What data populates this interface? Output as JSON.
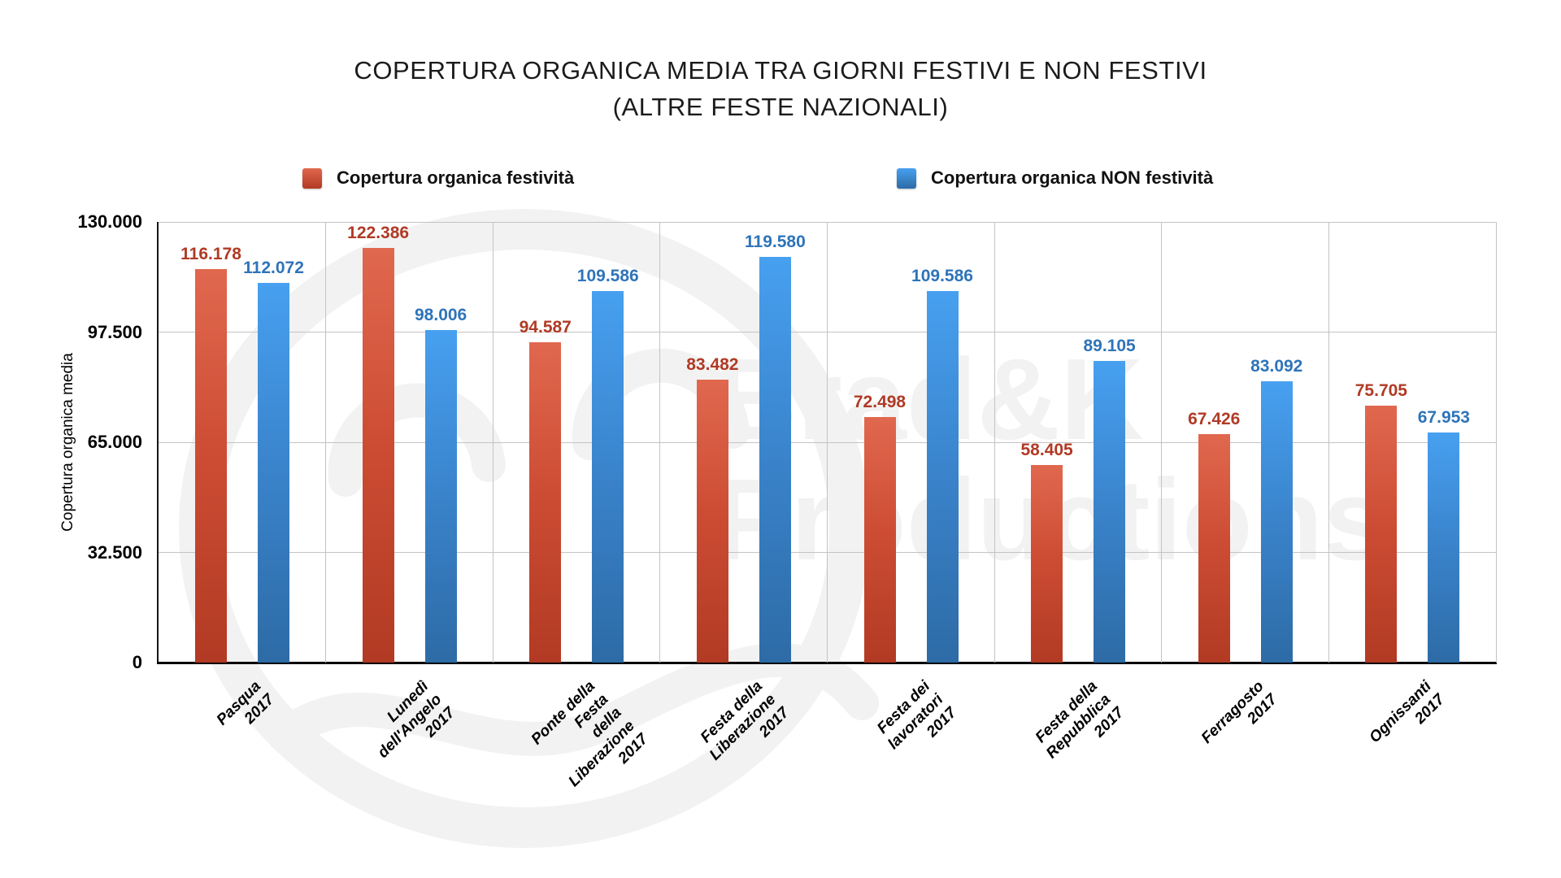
{
  "title": {
    "line1": "COPERTURA ORGANICA MEDIA TRA GIORNI FESTIVI E NON FESTIVI",
    "line2": "(ALTRE FESTE NAZIONALI)"
  },
  "legend": {
    "festivita_label": "Copertura organica festività",
    "non_festivita_label": "Copertura organica NON festività"
  },
  "watermark": {
    "line1": "Brad&K",
    "line2": "Productions"
  },
  "y_axis_title": "Copertura organica media",
  "chart_data": {
    "type": "bar",
    "title": "COPERTURA ORGANICA MEDIA TRA GIORNI FESTIVI E NON FESTIVI (ALTRE FESTE NAZIONALI)",
    "xlabel": "",
    "ylabel": "Copertura organica media",
    "ylim": [
      0,
      130000
    ],
    "yticks": [
      0,
      32500,
      65000,
      97500,
      130000
    ],
    "ytick_labels": [
      "0",
      "32.500",
      "65.000",
      "97.500",
      "130.000"
    ],
    "grid": true,
    "legend_position": "top",
    "number_format": "thousands-dot",
    "categories": [
      "Pasqua 2017",
      "Lunedì dell'Angelo 2017",
      "Ponte della Festa\ndella Liberazione 2017",
      "Festa della Liberazione 2017",
      "Festa dei lavoratori 2017",
      "Festa della Repubblica 2017",
      "Ferragosto 2017",
      "Ognissanti 2017"
    ],
    "series": [
      {
        "name": "Copertura organica festività",
        "values": [
          116178,
          122386,
          94587,
          83482,
          72498,
          58405,
          67426,
          75705
        ],
        "value_labels": [
          "116.178",
          "122.386",
          "94.587",
          "83.482",
          "72.498",
          "58.405",
          "67.426",
          "75.705"
        ]
      },
      {
        "name": "Copertura organica NON festività",
        "values": [
          112072,
          98006,
          109586,
          119580,
          109586,
          89105,
          83092,
          67953
        ],
        "value_labels": [
          "112.072",
          "98.006",
          "109.586",
          "119.580",
          "109.586",
          "89.105",
          "83.092",
          "67.953"
        ]
      }
    ]
  },
  "colors": {
    "red_top": "#e0684e",
    "red_mid": "#cc4c33",
    "red_bottom": "#b23a23",
    "blue_top": "#47a0f0",
    "blue_mid": "#3a84cc",
    "blue_bottom": "#2d6ba6",
    "red_label": "#b03a25",
    "blue_label": "#2e74b9",
    "grid": "#c3c3c3",
    "watermark": "#f2f2f2"
  }
}
